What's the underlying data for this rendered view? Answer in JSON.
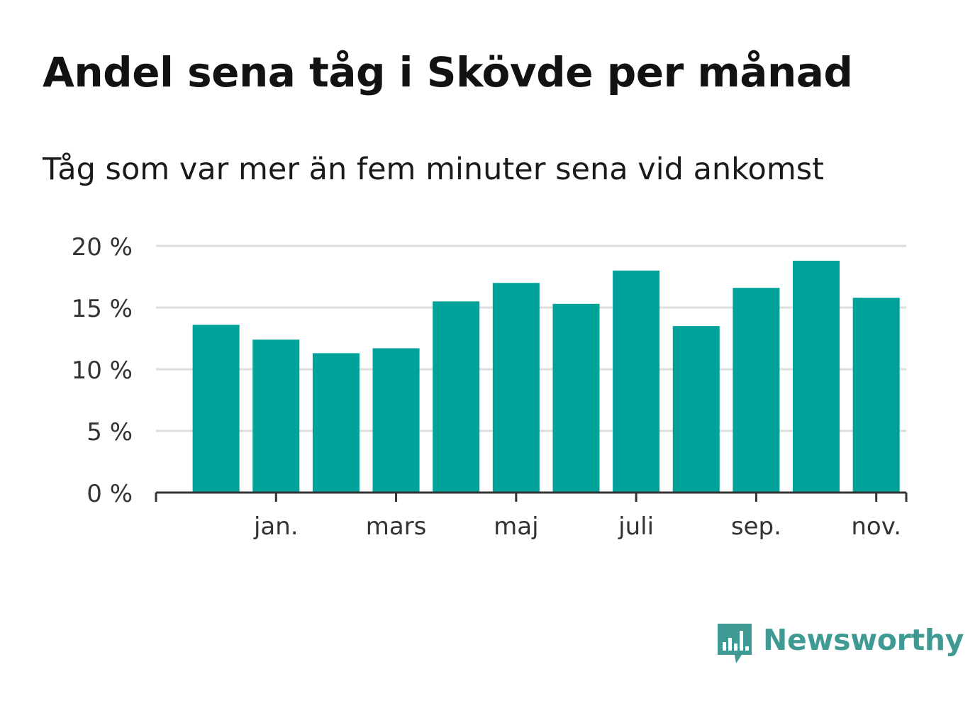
{
  "title": "Andel sena tåg i Skövde per månad",
  "subtitle": "Tåg som var mer än fem minuter sena vid ankomst",
  "brand": {
    "name": "Newsworthy",
    "color": "#3e9a93",
    "icon": "newsworthy-bar-chart-icon"
  },
  "chart_data": {
    "type": "bar",
    "title": "Andel sena tåg i Skövde per månad",
    "ylabel": "",
    "xlabel": "",
    "ylim": [
      0,
      20
    ],
    "y_ticks": [
      0,
      5,
      10,
      15,
      20
    ],
    "y_tick_labels": [
      "0 %",
      "5 %",
      "10 %",
      "15 %",
      "20 %"
    ],
    "x_tick_labels": [
      {
        "label": "jan.",
        "index": 1
      },
      {
        "label": "mars",
        "index": 3
      },
      {
        "label": "maj",
        "index": 5
      },
      {
        "label": "juli",
        "index": 7
      },
      {
        "label": "sep.",
        "index": 9
      },
      {
        "label": "nov.",
        "index": 11
      }
    ],
    "bar_color": "#00a29a",
    "grid": true,
    "values": [
      13.6,
      12.4,
      11.3,
      11.7,
      15.5,
      17.0,
      15.3,
      18.0,
      13.5,
      16.6,
      18.8,
      15.8
    ]
  }
}
